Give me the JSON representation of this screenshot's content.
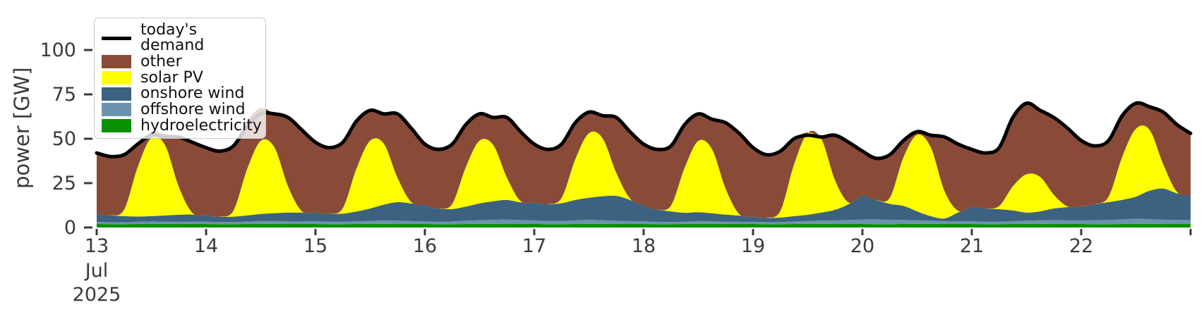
{
  "figure": {
    "kind": "matplotlib-stacked-area-power-chart",
    "background": "#ffffff"
  },
  "axes": {
    "ylabel": "power [GW]",
    "tick_color": "#3a3a3a",
    "x_month_label": "Jul",
    "x_year_label": "2025"
  },
  "legend": {
    "position": "upper left",
    "items": [
      {
        "label": "today's demand",
        "swatch": "line",
        "color": "#000000"
      },
      {
        "label": "other",
        "swatch": "patch",
        "color": "#8a4a38"
      },
      {
        "label": "solar PV",
        "swatch": "patch",
        "color": "#ffff00"
      },
      {
        "label": "onshore wind",
        "swatch": "patch",
        "color": "#3d6280"
      },
      {
        "label": "offshore wind",
        "swatch": "patch",
        "color": "#6d92b0"
      },
      {
        "label": "hydroelectricity",
        "swatch": "patch",
        "color": "#089000"
      }
    ]
  },
  "chart_data": {
    "type": "area",
    "title": "",
    "ylabel": "power [GW]",
    "grid": false,
    "legend_position": "upper left",
    "ylim": [
      0,
      115
    ],
    "yticks": [
      0,
      25,
      50,
      75,
      100
    ],
    "x_axis": {
      "start_day": 13,
      "end_day": 23,
      "step_days": 0.125,
      "month": "Jul",
      "year": "2025",
      "tick_days": [
        13,
        14,
        15,
        16,
        17,
        18,
        19,
        20,
        21,
        22,
        23
      ],
      "tick_labels": [
        "13",
        "14",
        "15",
        "16",
        "17",
        "18",
        "19",
        "20",
        "21",
        "22",
        ""
      ]
    },
    "stack_order": "bottom-to-top",
    "series": [
      {
        "name": "hydroelectricity",
        "color": "#089000",
        "values": [
          2,
          1.9,
          1.9,
          2,
          2.1,
          2.1,
          2,
          2,
          2,
          1.9,
          1.9,
          2,
          2.1,
          2.1,
          2,
          2,
          2,
          1.9,
          1.9,
          2,
          2.1,
          2.1,
          2,
          2,
          2,
          1.9,
          1.9,
          2,
          2.1,
          2.1,
          2,
          2,
          2,
          1.9,
          1.9,
          2,
          2.1,
          2.1,
          2,
          2,
          2,
          1.9,
          1.9,
          2,
          2.1,
          2.1,
          2,
          2,
          2,
          1.9,
          1.9,
          2,
          2.1,
          2.1,
          2,
          2,
          2,
          1.9,
          1.9,
          2,
          2.1,
          2.1,
          2,
          2,
          2,
          1.9,
          1.9,
          2,
          2.1,
          2.1,
          2,
          2,
          2,
          1.9,
          1.9,
          2,
          2.1,
          2.1,
          2,
          2,
          2
        ]
      },
      {
        "name": "offshore wind",
        "color": "#6d92b0",
        "values": [
          1.2,
          1,
          1,
          1.2,
          1.3,
          1.2,
          1.2,
          1.3,
          1.3,
          1.2,
          1.2,
          1.3,
          1.5,
          1.5,
          1.4,
          1.4,
          1.5,
          1.4,
          1.4,
          1.5,
          1.6,
          1.8,
          1.8,
          1.6,
          1.5,
          1.4,
          1.5,
          1.8,
          2,
          2.2,
          2.5,
          2.2,
          2,
          1.8,
          1.8,
          2,
          2.2,
          2,
          1.8,
          1.6,
          1.5,
          1.3,
          1.2,
          1.3,
          1.5,
          1.4,
          1.3,
          1.2,
          1.2,
          1.1,
          1.2,
          1.4,
          1.6,
          1.8,
          2,
          2.2,
          2.5,
          2.6,
          2.4,
          2.2,
          2,
          1.8,
          1.6,
          1.5,
          1.5,
          1.4,
          1.4,
          1.6,
          1.8,
          2,
          2.2,
          2,
          2,
          2.2,
          2.4,
          2.6,
          2.8,
          2.6,
          2.4,
          2.3,
          2.2
        ]
      },
      {
        "name": "onshore wind",
        "color": "#3d6280",
        "values": [
          4.5,
          4,
          3.5,
          3,
          3,
          3.5,
          4,
          4,
          3.5,
          3,
          3,
          3.5,
          4,
          4.5,
          5,
          5,
          5,
          4.5,
          4.5,
          5.5,
          7,
          9,
          10.5,
          10,
          9,
          7.5,
          7,
          8,
          9.5,
          10.5,
          11,
          10,
          10,
          9.5,
          10,
          11.5,
          12.5,
          13.5,
          14,
          12,
          9,
          7,
          6,
          5,
          5,
          4.5,
          4,
          3.5,
          3,
          2.5,
          2.5,
          3,
          3.5,
          4.5,
          6,
          9,
          13.5,
          11,
          9,
          8,
          5,
          2.5,
          1.5,
          5,
          8,
          7.5,
          7,
          6,
          4.5,
          5,
          6.5,
          7.5,
          8,
          9,
          10,
          11,
          12.5,
          16,
          17.5,
          15,
          14
        ]
      },
      {
        "name": "solar PV",
        "color": "#ffff00",
        "values": [
          0,
          0,
          3.6,
          27.9,
          44.1,
          39.6,
          15.8,
          0.9,
          0,
          0,
          3.4,
          26,
          41.2,
          37,
          14.7,
          0.8,
          0,
          0,
          3.1,
          24.2,
          38.2,
          34.3,
          13.7,
          0.8,
          0,
          0,
          2.9,
          22.3,
          35.3,
          31.7,
          12.6,
          0.7,
          0,
          0,
          3,
          22.9,
          36.3,
          32.6,
          13,
          0.7,
          0,
          0,
          3.3,
          25.4,
          40.2,
          36.1,
          14.4,
          0.8,
          0,
          0,
          3.8,
          29.1,
          46.1,
          41.4,
          16.5,
          0.9,
          0,
          0,
          3.5,
          27.3,
          43.1,
          38.7,
          15.4,
          0.9,
          0,
          0,
          1.8,
          13.6,
          21.6,
          19.4,
          7.7,
          0.4,
          0,
          0,
          3.1,
          24.2,
          38.2,
          34.3,
          13.7,
          0.8,
          0
        ]
      },
      {
        "name": "other",
        "color": "#8a4a38",
        "values": [
          34.3,
          33,
          30.9,
          12.8,
          3.2,
          6.3,
          27.8,
          39.7,
          38.2,
          36.8,
          36.4,
          27.2,
          18.5,
          19,
          38.9,
          45.8,
          39.5,
          37.1,
          37,
          26.8,
          17.2,
          16.9,
          36,
          41.6,
          34.5,
          33.1,
          33.6,
          23.9,
          15.2,
          15.6,
          33.9,
          39.1,
          33,
          30.7,
          30.2,
          20.6,
          12,
          12.9,
          31.2,
          37.7,
          34.5,
          33.7,
          33.5,
          24.3,
          15.3,
          17,
          37.3,
          45.5,
          38.8,
          35.4,
          33.5,
          14.5,
          0.3,
          1.3,
          25.5,
          33.9,
          25,
          23.4,
          24.1,
          9.5,
          1.9,
          7,
          30.5,
          37.6,
          32.5,
          31.1,
          32.8,
          38.8,
          40.1,
          37.6,
          43.6,
          44.1,
          37,
          32.8,
          31.5,
          23.2,
          14.5,
          13.1,
          29.4,
          37.9,
          34.8
        ]
      }
    ],
    "demand": {
      "name": "today's demand",
      "color": "#000000",
      "line_width": 5,
      "values": [
        42,
        40,
        41,
        47,
        52,
        51,
        51,
        48,
        45,
        43,
        46,
        57,
        64,
        64,
        62,
        55,
        48,
        45,
        48,
        60,
        66,
        64,
        64,
        56,
        47,
        44,
        47,
        58,
        64,
        62,
        62,
        54,
        47,
        44,
        47,
        59,
        65,
        63,
        62,
        54,
        47,
        44,
        46,
        58,
        64,
        61,
        59,
        53,
        45,
        41,
        43,
        50,
        52,
        51,
        52,
        48,
        43,
        39,
        41,
        49,
        54,
        52,
        51,
        47,
        44,
        42,
        45,
        62,
        70,
        66,
        62,
        56,
        49,
        46,
        49,
        63,
        70,
        68,
        65,
        58,
        53
      ]
    }
  }
}
